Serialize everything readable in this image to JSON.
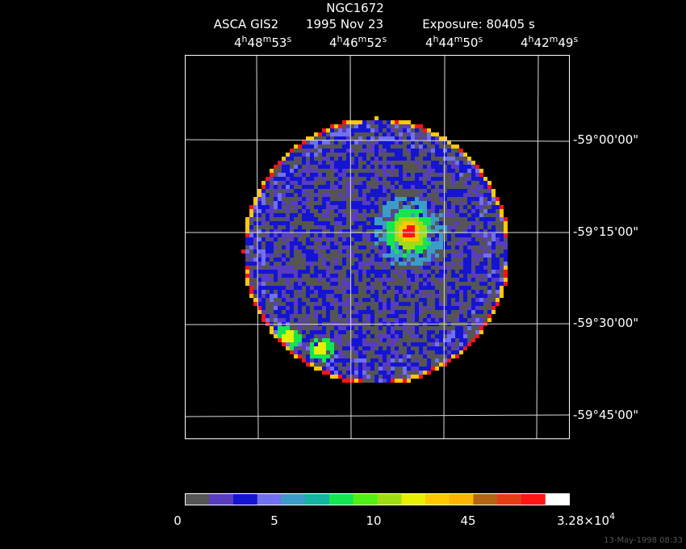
{
  "header": {
    "title": "NGC1672",
    "instrument": "ASCA GIS2",
    "date": "1995 Nov 23",
    "exposure": "Exposure: 80405 s"
  },
  "ra_labels": [
    "4h48m53s",
    "4h46m52s",
    "4h44m50s",
    "4h42m49s"
  ],
  "dec_labels": [
    "-59°00'00\"",
    "-59°15'00\"",
    "-59°30'00\"",
    "-59°45'00\""
  ],
  "colorbar_labels": [
    "0",
    "5",
    "10",
    "45",
    {
      "mantissa": "3.28×10",
      "exponent": "4"
    }
  ],
  "timestamp": "13-May-1998 08:33"
}
